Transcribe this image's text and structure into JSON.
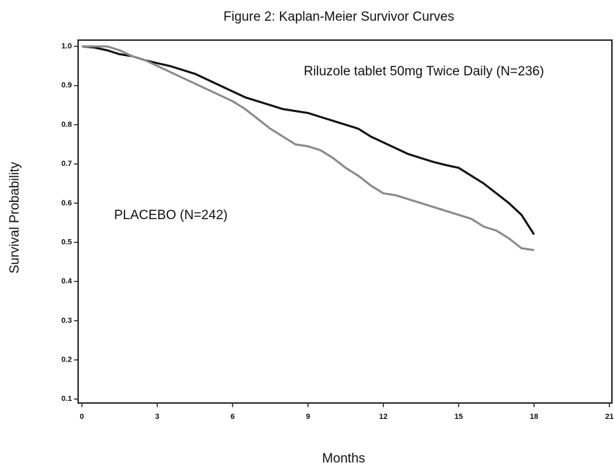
{
  "chart_data": {
    "type": "line",
    "title": "Figure 2: Kaplan-Meier Survivor Curves",
    "x_label": "Months",
    "y_label": "Survival Probability",
    "xlim": [
      -0.15,
      21.1
    ],
    "ylim": [
      0.09,
      1.016
    ],
    "xticks": [
      0,
      3,
      6,
      9,
      12,
      15,
      18,
      21
    ],
    "yticks": [
      0.1,
      0.2,
      0.3,
      0.4,
      0.5,
      0.6,
      0.7,
      0.8,
      0.9,
      {
        "value": 1,
        "label": "1.0"
      }
    ],
    "x": [
      0,
      0.5,
      1,
      1.5,
      2,
      2.5,
      3,
      3.5,
      4,
      4.5,
      5,
      5.5,
      6,
      6.5,
      7,
      7.5,
      8,
      8.5,
      9,
      9.5,
      10,
      10.5,
      11,
      11.5,
      12,
      12.5,
      13,
      13.5,
      14,
      14.5,
      15,
      15.5,
      16,
      16.5,
      17,
      17.5,
      18
    ],
    "series": [
      {
        "name": "Riluzole tablet 50mg Twice Daily (N=236)",
        "color": "#111111",
        "values": [
          1.0,
          0.997,
          0.99,
          0.98,
          0.975,
          0.965,
          0.957,
          0.95,
          0.94,
          0.93,
          0.915,
          0.9,
          0.885,
          0.87,
          0.86,
          0.85,
          0.84,
          0.835,
          0.83,
          0.82,
          0.81,
          0.8,
          0.79,
          0.77,
          0.755,
          0.74,
          0.725,
          0.715,
          0.705,
          0.697,
          0.69,
          0.67,
          0.65,
          0.625,
          0.6,
          0.57,
          0.52
        ]
      },
      {
        "name": "PLACEBO (N=242)",
        "color": "#8a8a8a",
        "values": [
          1.0,
          1.0,
          1.0,
          0.99,
          0.975,
          0.965,
          0.95,
          0.935,
          0.92,
          0.905,
          0.89,
          0.875,
          0.86,
          0.84,
          0.815,
          0.79,
          0.77,
          0.75,
          0.745,
          0.735,
          0.715,
          0.69,
          0.67,
          0.645,
          0.625,
          0.62,
          0.61,
          0.6,
          0.59,
          0.58,
          0.57,
          0.56,
          0.54,
          0.53,
          0.51,
          0.485,
          0.48
        ]
      }
    ]
  }
}
